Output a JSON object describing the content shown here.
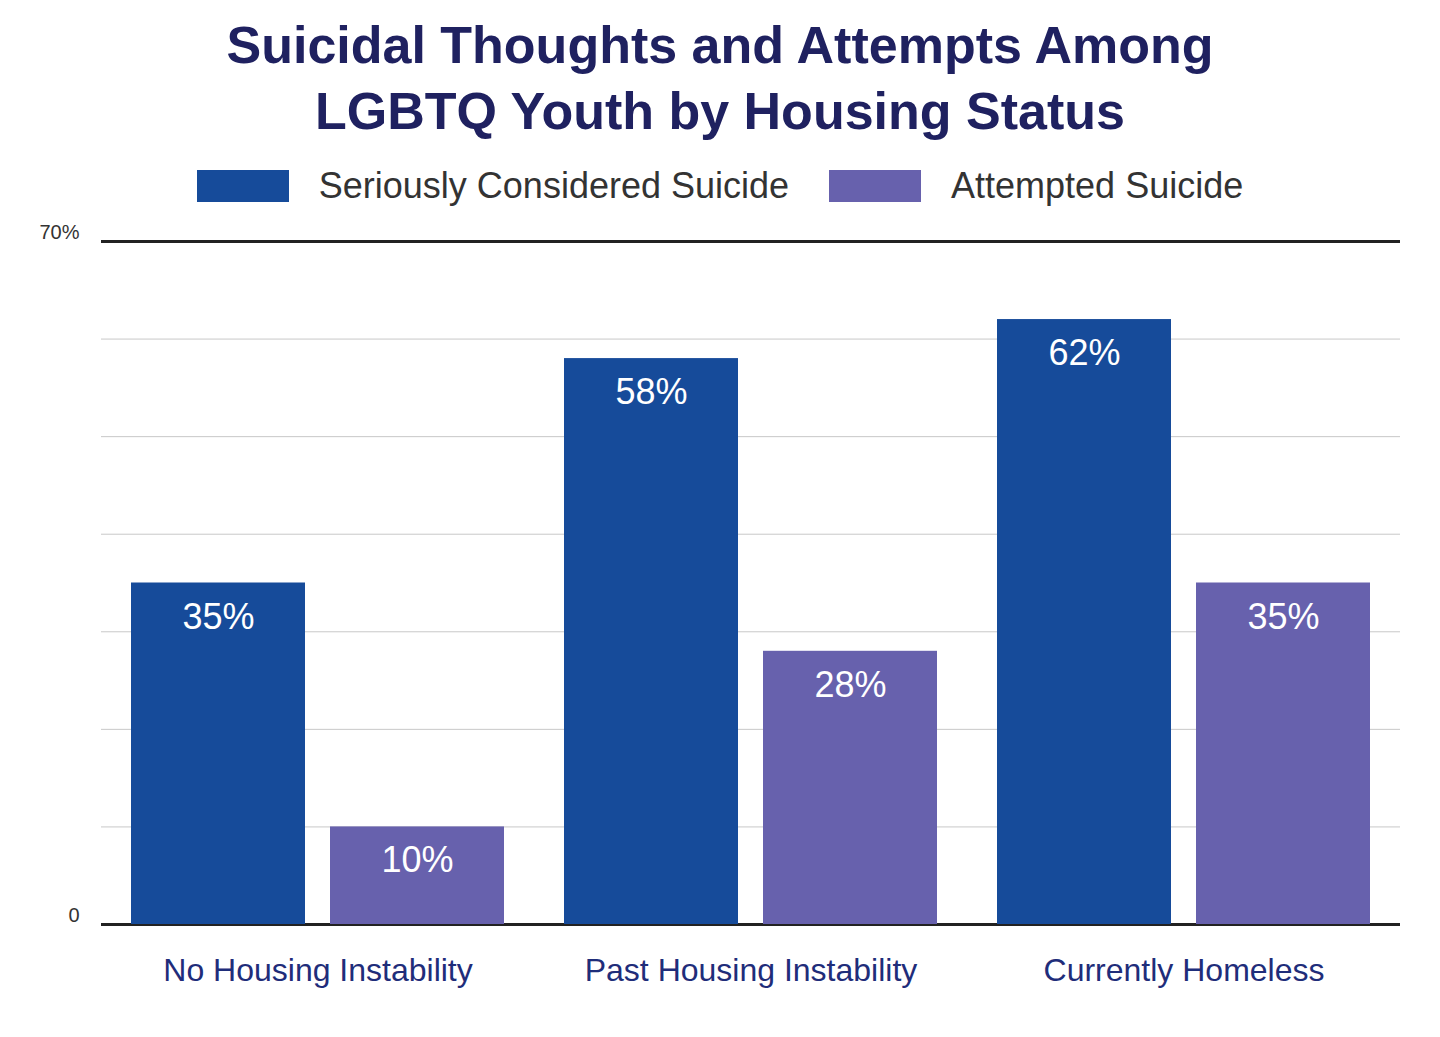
{
  "chart_data": {
    "type": "bar",
    "title": "Suicidal Thoughts and Attempts Among LGBTQ Youth by Housing Status",
    "categories": [
      "No Housing Instability",
      "Past Housing Instability",
      "Currently Homeless"
    ],
    "series": [
      {
        "name": "Seriously Considered Suicide",
        "color": "#164b9a",
        "values": [
          35,
          58,
          62
        ],
        "value_labels": [
          "35%",
          "58%",
          "62%"
        ]
      },
      {
        "name": "Attempted Suicide",
        "color": "#6761ad",
        "values": [
          10,
          28,
          35
        ],
        "value_labels": [
          "10%",
          "28%",
          "35%"
        ]
      }
    ],
    "ylim": [
      0,
      70
    ],
    "yticks": [
      0,
      {
        "value": 10,
        "label": null
      },
      {
        "value": 20,
        "label": null
      },
      {
        "value": 30,
        "label": null
      },
      {
        "value": 40,
        "label": null
      },
      {
        "value": 50,
        "label": null
      },
      {
        "value": 60,
        "label": null
      },
      {
        "value": 70,
        "label": "70%"
      }
    ],
    "grid": true,
    "data_labels": true,
    "legend": "top"
  }
}
